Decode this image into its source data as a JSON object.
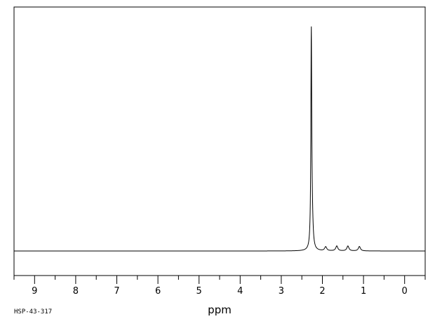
{
  "chart_data": {
    "type": "line",
    "title": "",
    "xlabel": "ppm",
    "ylabel": "",
    "sample_id": "HSP-43-317",
    "xlim": [
      9.5,
      -0.5
    ],
    "ylim": [
      -0.1,
      1.0
    ],
    "x_reversed": true,
    "grid": false,
    "legend": "none",
    "xticks": [
      9,
      8,
      7,
      6,
      5,
      4,
      3,
      2,
      1,
      0
    ],
    "xtick_labels": [
      "9",
      "8",
      "7",
      "6",
      "5",
      "4",
      "3",
      "2",
      "1",
      "0"
    ],
    "series": [
      {
        "peaks": [
          {
            "ppm": 2.27,
            "height": 0.94,
            "width": 0.012
          },
          {
            "ppm": 2.25,
            "height": 0.12,
            "width": 0.025
          },
          {
            "ppm": 1.92,
            "height": 0.018,
            "width": 0.03
          },
          {
            "ppm": 1.65,
            "height": 0.022,
            "width": 0.03
          },
          {
            "ppm": 1.38,
            "height": 0.022,
            "width": 0.03
          },
          {
            "ppm": 1.1,
            "height": 0.02,
            "width": 0.03
          }
        ]
      }
    ]
  }
}
